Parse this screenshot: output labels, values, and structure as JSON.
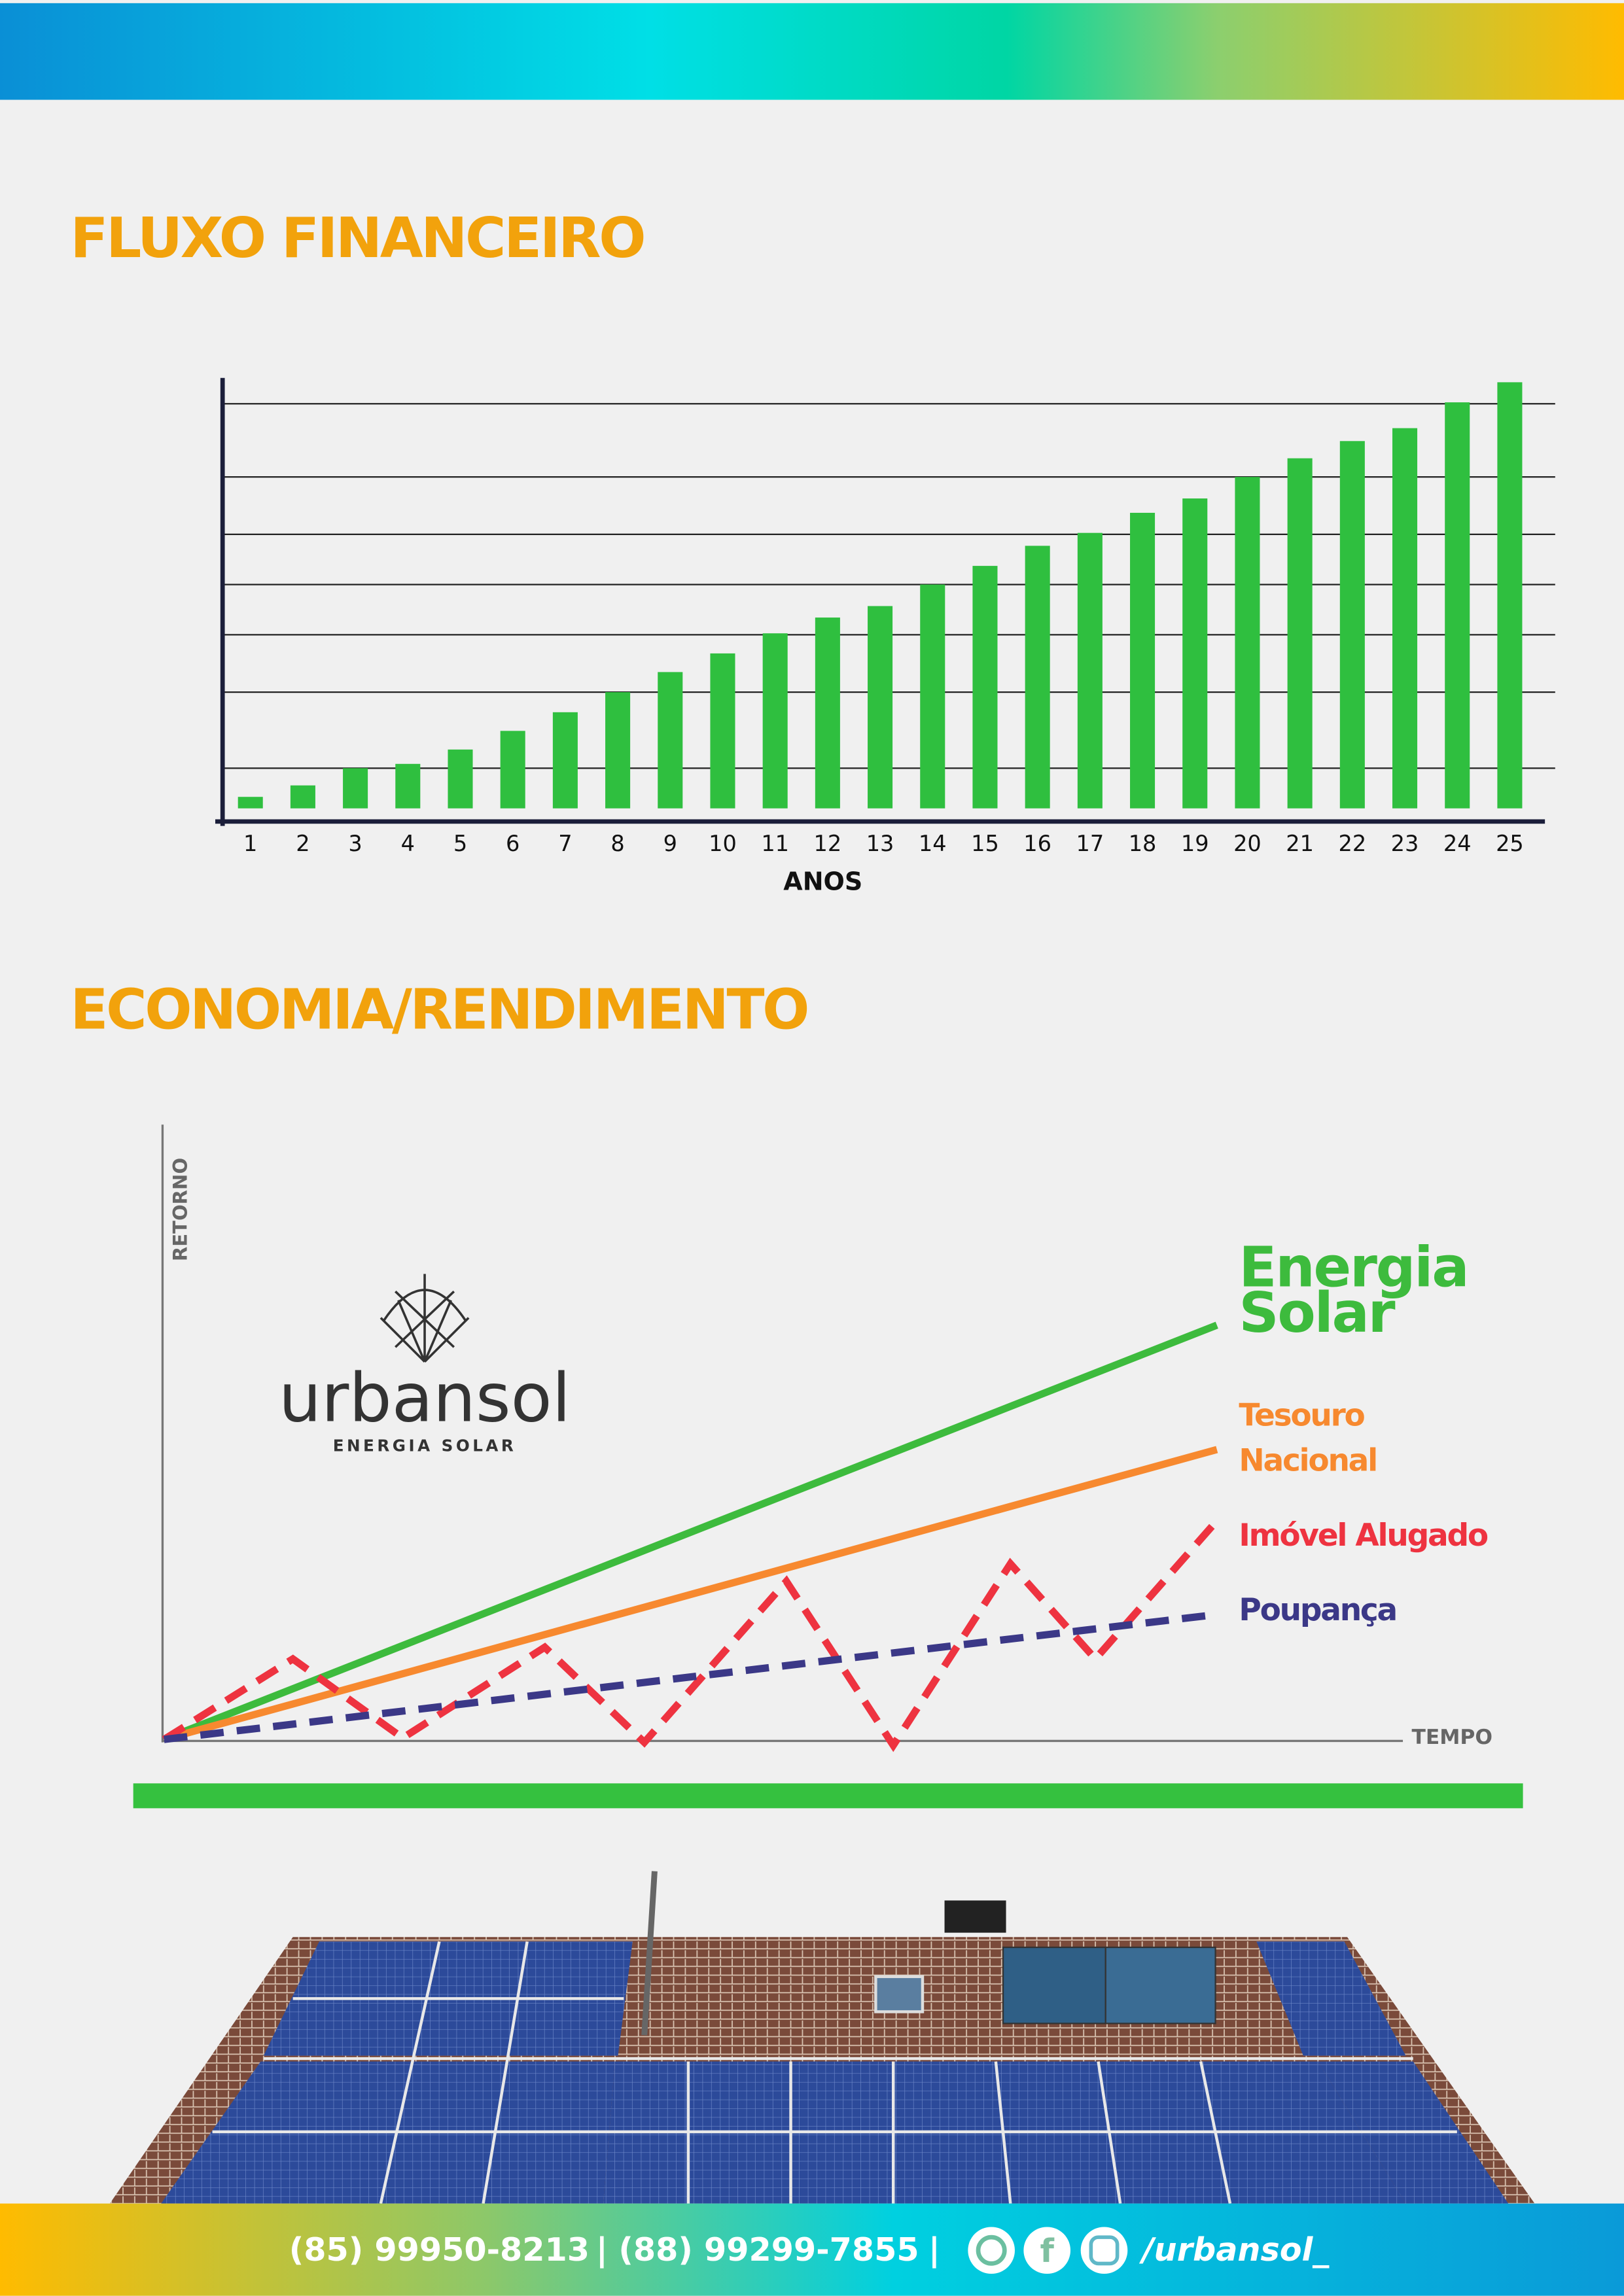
{
  "header": {
    "title_flow": "FLUXO FINANCEIRO",
    "title_economy": "ECONOMIA/RENDIMENTO"
  },
  "chart_data": {
    "type": "bar",
    "x_label": "ANOS",
    "categories": [
      "1",
      "2",
      "3",
      "4",
      "5",
      "6",
      "7",
      "8",
      "9",
      "10",
      "11",
      "12",
      "13",
      "14",
      "15",
      "16",
      "17",
      "18",
      "19",
      "20",
      "21",
      "22",
      "23",
      "24",
      "25"
    ],
    "values": [
      8,
      16,
      28,
      31,
      41,
      54,
      67,
      81,
      95,
      108,
      122,
      133,
      141,
      156,
      169,
      183,
      192,
      206,
      216,
      231,
      244,
      256,
      265,
      283,
      297
    ],
    "color": "#2fbf3f",
    "ylim": [
      0,
      300
    ],
    "yticks": [
      28,
      81,
      121,
      156,
      191,
      231,
      282
    ],
    "grid": true
  },
  "comparison": {
    "y_label": "RETORNO",
    "x_label": "TEMPO",
    "series": [
      {
        "name": [
          "Energia",
          "Solar"
        ],
        "color": "#3dbb3d"
      },
      {
        "name": [
          "Tesouro",
          "Nacional"
        ],
        "color": "#f7892f"
      },
      {
        "name": [
          "Imóvel Alugado"
        ],
        "color": "#ee3340"
      },
      {
        "name": [
          "Poupança"
        ],
        "color": "#3b3887"
      }
    ]
  },
  "logo": {
    "brand": "urbansol",
    "tagline": "ENERGIA SOLAR"
  },
  "footer": {
    "phone1": "(85) 99950-8213",
    "separator": "|",
    "phone2": "(88) 99299-7855",
    "handle": "/urbansol_"
  }
}
